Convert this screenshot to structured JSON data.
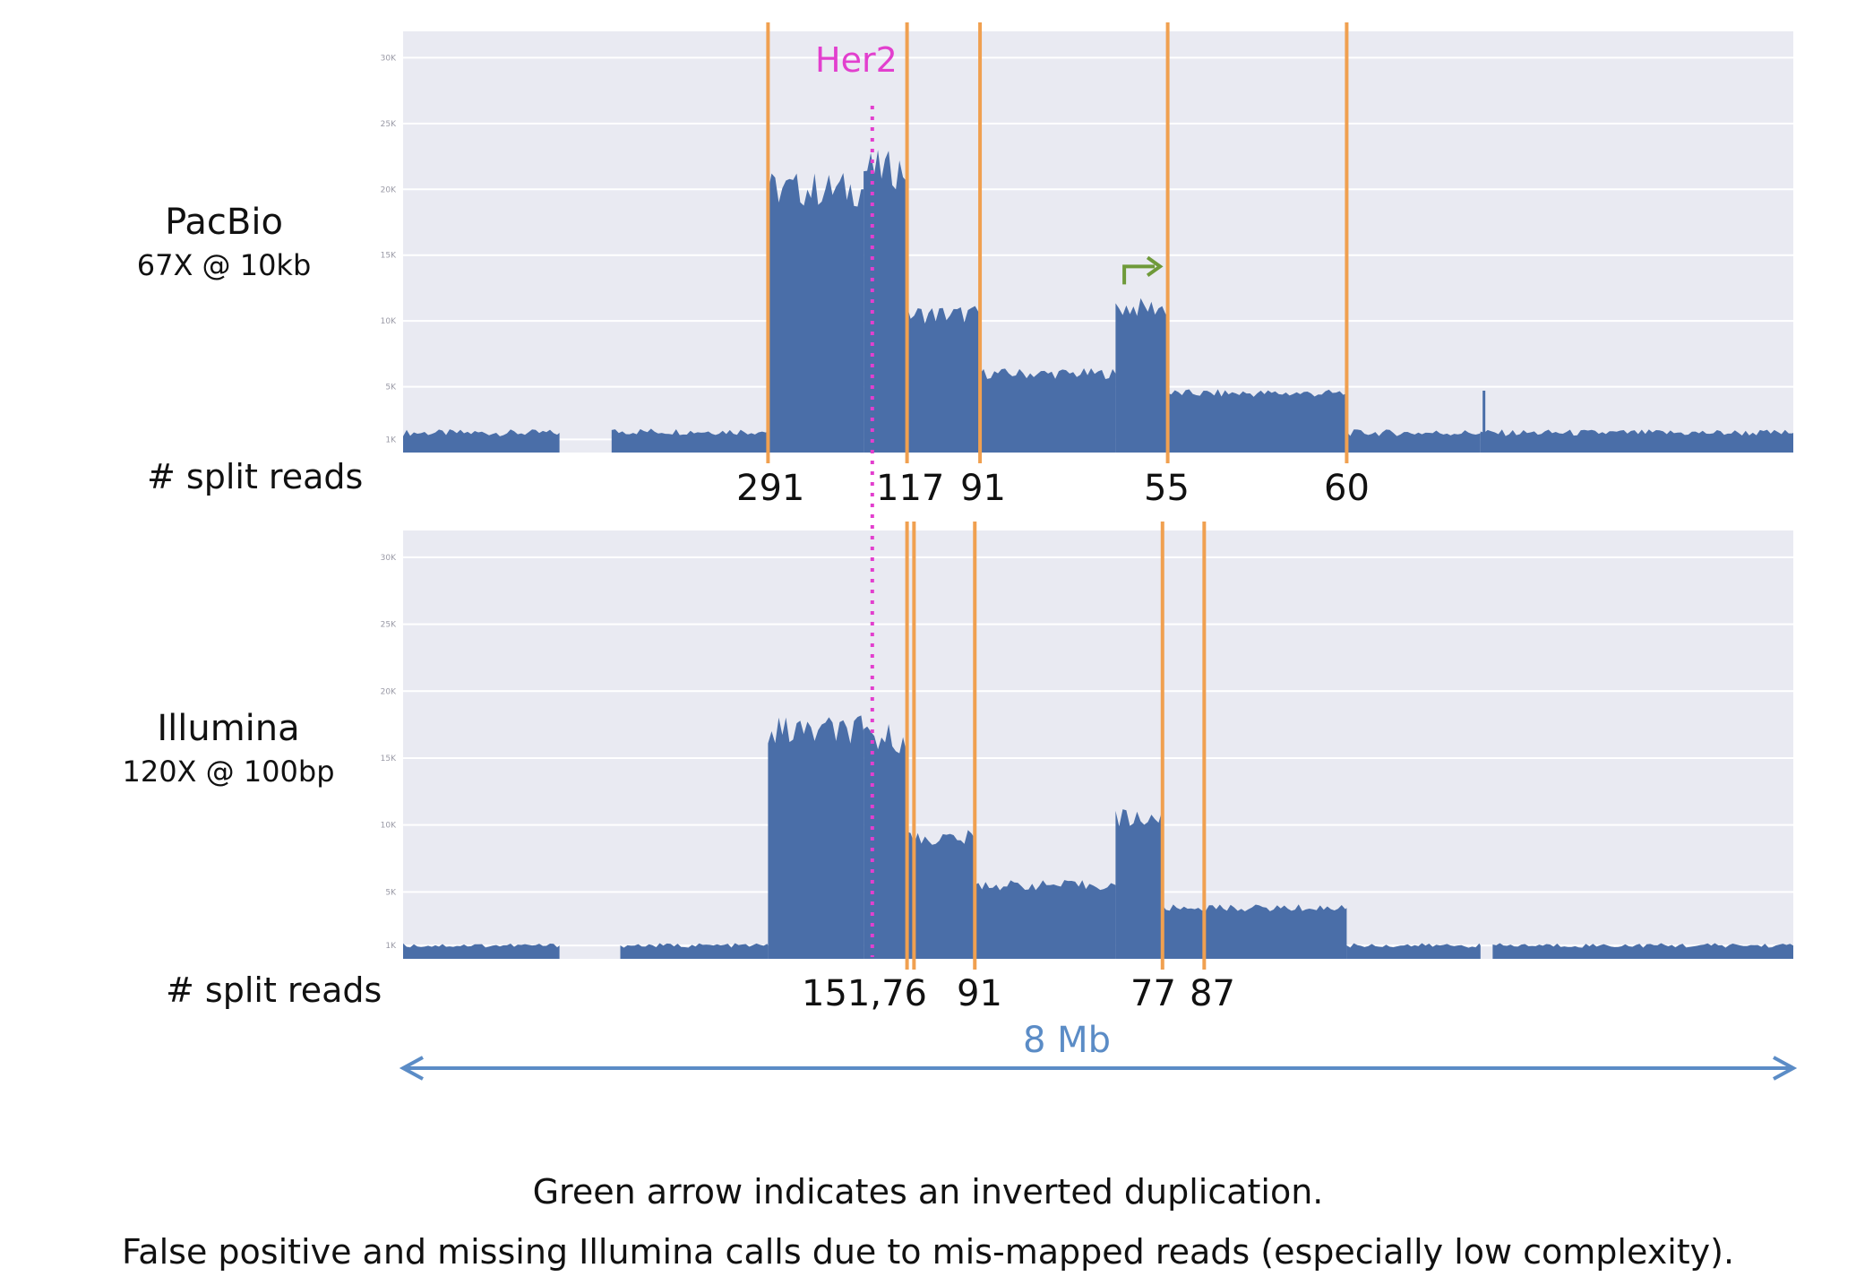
{
  "labels": {
    "split_reads": "# split reads",
    "her2": "Her2",
    "scale": "8 Mb"
  },
  "captions": [
    "Green arrow indicates an inverted duplication.",
    "False positive and missing Illumina calls due to mis-mapped reads (especially low complexity)."
  ],
  "colors": {
    "coverage": "#4a6ea8",
    "panel_bg": "#e9eaf2",
    "grid": "#ffffff",
    "breakpoint": "#f0a050",
    "her2": "#e23fce",
    "inverted_dup_arrow": "#6f9a3a",
    "scale_arrow": "#5b8cc6"
  },
  "chart_data": [
    {
      "type": "area",
      "platform": "PacBio",
      "platform_detail": "67X @ 10kb",
      "x_range_mb": [
        0,
        8
      ],
      "yticks": [
        "1K",
        "5K",
        "10K",
        "15K",
        "20K",
        "25K",
        "30K"
      ],
      "ylim": [
        0,
        32000
      ],
      "her2_position_mb": 2.7,
      "breakpoints": [
        {
          "x_mb": 2.1,
          "split_reads": "291"
        },
        {
          "x_mb": 2.9,
          "split_reads": "117"
        },
        {
          "x_mb": 3.32,
          "split_reads": "91"
        },
        {
          "x_mb": 4.4,
          "split_reads": "55"
        },
        {
          "x_mb": 5.43,
          "split_reads": "60"
        }
      ],
      "inverted_duplication_arrow_mb": 4.15,
      "coverage_segments": [
        {
          "x": [
            0,
            0.9
          ],
          "y": 1500
        },
        {
          "x": [
            1.2,
            2.1
          ],
          "y": 1600
        },
        {
          "x": [
            2.1,
            2.65
          ],
          "y": 20000
        },
        {
          "x": [
            2.65,
            2.9
          ],
          "y": 21500
        },
        {
          "x": [
            2.9,
            3.32
          ],
          "y": 10500
        },
        {
          "x": [
            3.32,
            4.1
          ],
          "y": 6000
        },
        {
          "x": [
            4.1,
            4.4
          ],
          "y": 11000
        },
        {
          "x": [
            4.4,
            5.43
          ],
          "y": 4500
        },
        {
          "x": [
            5.43,
            6.2
          ],
          "y": 1500
        },
        {
          "x": [
            6.2,
            8.0
          ],
          "y": 1500
        }
      ],
      "spikes": [
        {
          "x_mb": 6.22,
          "y": 4700
        }
      ]
    },
    {
      "type": "area",
      "platform": "Illumina",
      "platform_detail": "120X @ 100bp",
      "x_range_mb": [
        0,
        8
      ],
      "yticks": [
        "1K",
        "5K",
        "10K",
        "15K",
        "20K",
        "25K",
        "30K"
      ],
      "ylim": [
        0,
        32000
      ],
      "her2_position_mb": 2.7,
      "breakpoints": [
        {
          "x_mb": 2.9
        },
        {
          "x_mb": 2.94
        },
        {
          "x_mb": 3.29
        },
        {
          "x_mb": 4.37
        },
        {
          "x_mb": 4.61
        }
      ],
      "split_read_labels": [
        {
          "x_mb": 2.62,
          "text": "151,76"
        },
        {
          "x_mb": 3.31,
          "text": "91"
        },
        {
          "x_mb": 4.38,
          "text": "77"
        },
        {
          "x_mb": 4.6,
          "text": "87"
        }
      ],
      "coverage_segments": [
        {
          "x": [
            0,
            0.9
          ],
          "y": 1000
        },
        {
          "x": [
            1.25,
            2.1
          ],
          "y": 1000
        },
        {
          "x": [
            2.1,
            2.65
          ],
          "y": 17000
        },
        {
          "x": [
            2.65,
            2.9
          ],
          "y": 16500
        },
        {
          "x": [
            2.9,
            3.29
          ],
          "y": 9000
        },
        {
          "x": [
            3.29,
            4.1
          ],
          "y": 5500
        },
        {
          "x": [
            4.1,
            4.37
          ],
          "y": 10500
        },
        {
          "x": [
            4.37,
            5.43
          ],
          "y": 3800
        },
        {
          "x": [
            5.43,
            6.2
          ],
          "y": 1000
        },
        {
          "x": [
            6.27,
            8.0
          ],
          "y": 1000
        }
      ]
    }
  ]
}
